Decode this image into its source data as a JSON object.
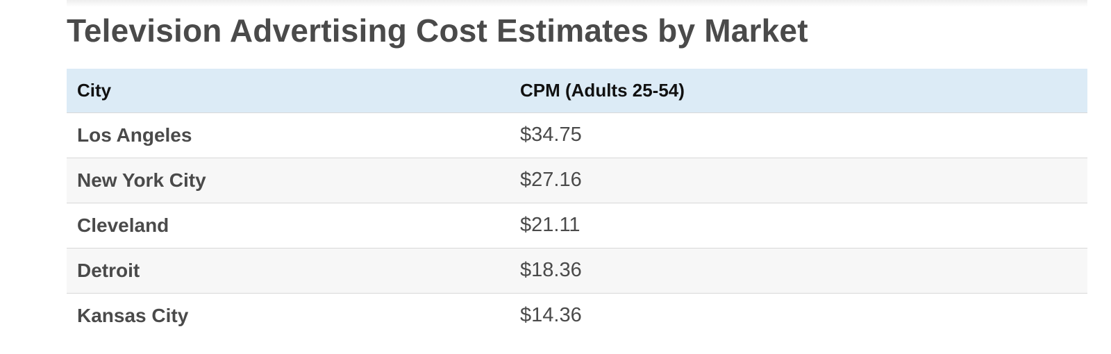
{
  "page": {
    "title": "Television Advertising Cost Estimates by Market"
  },
  "table": {
    "headers": [
      "City",
      "CPM (Adults 25-54)"
    ],
    "rows": [
      {
        "city": "Los Angeles",
        "cpm": "$34.75"
      },
      {
        "city": "New York City",
        "cpm": "$27.16"
      },
      {
        "city": "Cleveland",
        "cpm": "$21.11"
      },
      {
        "city": "Detroit",
        "cpm": "$18.36"
      },
      {
        "city": "Kansas City",
        "cpm": "$14.36"
      }
    ]
  },
  "colors": {
    "header_background": "#dcebf6",
    "text": "#4a4a4a",
    "row_divider": "#d8d8d8"
  }
}
